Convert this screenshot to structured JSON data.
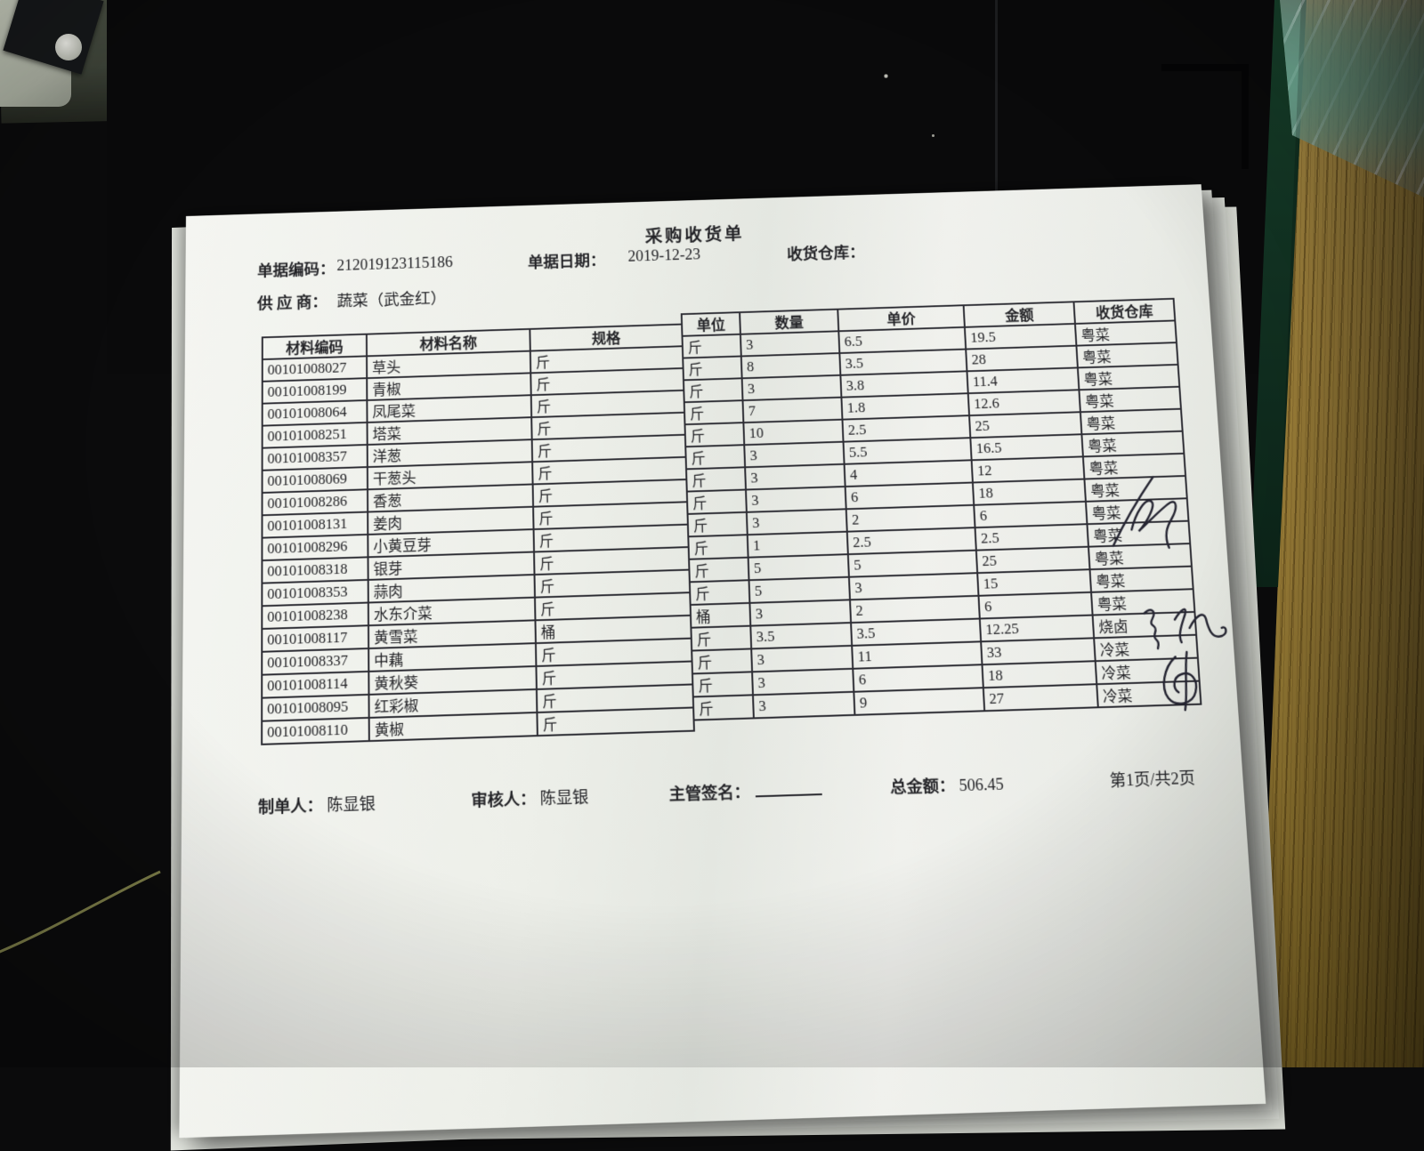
{
  "document": {
    "title": "采购收货单",
    "meta": {
      "code_label": "单据编码：",
      "code": "212019123115186",
      "date_label": "单据日期：",
      "date": "2019-12-23",
      "warehouse_label": "收货仓库：",
      "warehouse_value": "",
      "supplier_label": "供 应 商：",
      "supplier": "蔬菜（武金红）"
    },
    "table": {
      "headers": {
        "code": "材料编码",
        "name": "材料名称",
        "spec": "规格",
        "unit": "单位",
        "qty": "数量",
        "price": "单价",
        "amount": "金额",
        "warehouse": "收货仓库"
      },
      "rows": [
        {
          "code": "00101008027",
          "name": "草头",
          "spec": "斤",
          "unit": "斤",
          "qty": "3",
          "price": "6.5",
          "amount": "19.5",
          "warehouse": "粤菜"
        },
        {
          "code": "00101008199",
          "name": "青椒",
          "spec": "斤",
          "unit": "斤",
          "qty": "8",
          "price": "3.5",
          "amount": "28",
          "warehouse": "粤菜"
        },
        {
          "code": "00101008064",
          "name": "凤尾菜",
          "spec": "斤",
          "unit": "斤",
          "qty": "3",
          "price": "3.8",
          "amount": "11.4",
          "warehouse": "粤菜"
        },
        {
          "code": "00101008251",
          "name": "塔菜",
          "spec": "斤",
          "unit": "斤",
          "qty": "7",
          "price": "1.8",
          "amount": "12.6",
          "warehouse": "粤菜"
        },
        {
          "code": "00101008357",
          "name": "洋葱",
          "spec": "斤",
          "unit": "斤",
          "qty": "10",
          "price": "2.5",
          "amount": "25",
          "warehouse": "粤菜"
        },
        {
          "code": "00101008069",
          "name": "干葱头",
          "spec": "斤",
          "unit": "斤",
          "qty": "3",
          "price": "5.5",
          "amount": "16.5",
          "warehouse": "粤菜"
        },
        {
          "code": "00101008286",
          "name": "香葱",
          "spec": "斤",
          "unit": "斤",
          "qty": "3",
          "price": "4",
          "amount": "12",
          "warehouse": "粤菜"
        },
        {
          "code": "00101008131",
          "name": "姜肉",
          "spec": "斤",
          "unit": "斤",
          "qty": "3",
          "price": "6",
          "amount": "18",
          "warehouse": "粤菜"
        },
        {
          "code": "00101008296",
          "name": "小黄豆芽",
          "spec": "斤",
          "unit": "斤",
          "qty": "3",
          "price": "2",
          "amount": "6",
          "warehouse": "粤菜"
        },
        {
          "code": "00101008318",
          "name": "银芽",
          "spec": "斤",
          "unit": "斤",
          "qty": "1",
          "price": "2.5",
          "amount": "2.5",
          "warehouse": "粤菜"
        },
        {
          "code": "00101008353",
          "name": "蒜肉",
          "spec": "斤",
          "unit": "斤",
          "qty": "5",
          "price": "5",
          "amount": "25",
          "warehouse": "粤菜"
        },
        {
          "code": "00101008238",
          "name": "水东介菜",
          "spec": "斤",
          "unit": "斤",
          "qty": "5",
          "price": "3",
          "amount": "15",
          "warehouse": "粤菜"
        },
        {
          "code": "00101008117",
          "name": "黄雪菜",
          "spec": "桶",
          "unit": "桶",
          "qty": "3",
          "price": "2",
          "amount": "6",
          "warehouse": "粤菜"
        },
        {
          "code": "00101008337",
          "name": "中藕",
          "spec": "斤",
          "unit": "斤",
          "qty": "3.5",
          "price": "3.5",
          "amount": "12.25",
          "warehouse": "烧卤"
        },
        {
          "code": "00101008114",
          "name": "黄秋葵",
          "spec": "斤",
          "unit": "斤",
          "qty": "3",
          "price": "11",
          "amount": "33",
          "warehouse": "冷菜"
        },
        {
          "code": "00101008095",
          "name": "红彩椒",
          "spec": "斤",
          "unit": "斤",
          "qty": "3",
          "price": "6",
          "amount": "18",
          "warehouse": "冷菜"
        },
        {
          "code": "00101008110",
          "name": "黄椒",
          "spec": "斤",
          "unit": "斤",
          "qty": "3",
          "price": "9",
          "amount": "27",
          "warehouse": "冷菜"
        }
      ]
    },
    "footer": {
      "maker_label": "制单人：",
      "maker": "陈显银",
      "auditor_label": "审核人：",
      "auditor": "陈显银",
      "sign_label": "主管签名：",
      "total_label": "总金额：",
      "total": "506.45",
      "page": "第1页/共2页"
    },
    "handwriting_marks": [
      "illegible cursive pen scribble beside 粤菜 rows",
      "illegible cursive pen signature beside 烧卤 row",
      "illegible cursive pen loop beside 冷菜 rows"
    ]
  },
  "colors": {
    "paper": "#eff0ec",
    "ink": "#232327",
    "table_border": "#2c2c33",
    "wood": "#bc9946",
    "green_strip": "#123323",
    "bag_teal": "#6eaf98",
    "wall": "#3f453a"
  }
}
